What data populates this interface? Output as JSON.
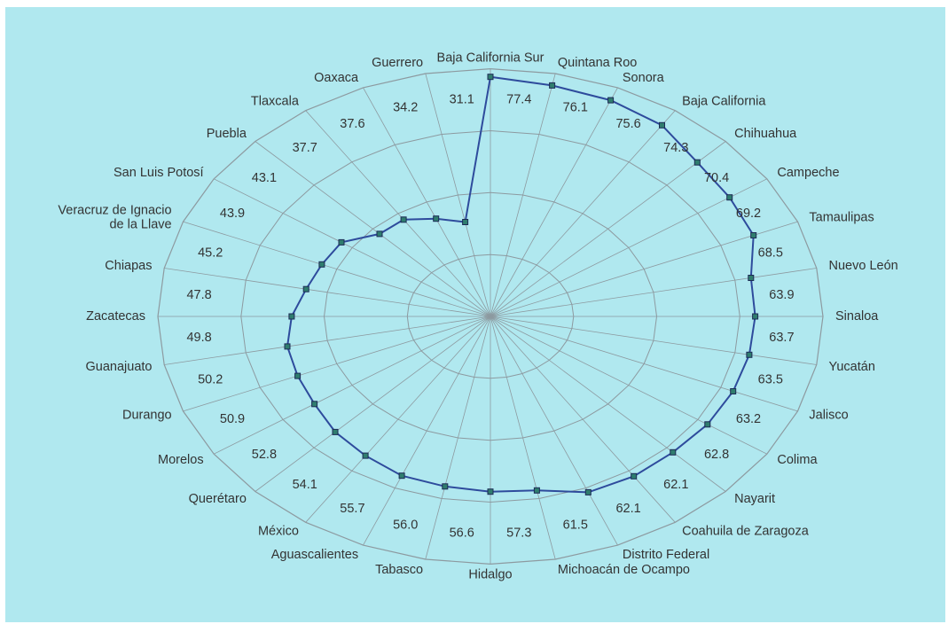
{
  "chart_data": {
    "type": "radar",
    "title": "",
    "rmax": 80,
    "ring_step": 20,
    "grid": true,
    "colors": {
      "background": "#b0e8ef",
      "grid": "#8d9aa0",
      "series_line": "#2e4b9c",
      "marker_fill": "#2f7d6e",
      "marker_stroke": "#1c2b55",
      "text": "#333333"
    },
    "categories": [
      "Baja California Sur",
      "Quintana Roo",
      "Sonora",
      "Baja California",
      "Chihuahua",
      "Campeche",
      "Tamaulipas",
      "Nuevo León",
      "Sinaloa",
      "Yucatán",
      "Jalisco",
      "Colima",
      "Nayarit",
      "Coahuila de Zaragoza",
      "Distrito Federal",
      "Michoacán de Ocampo",
      "Hidalgo",
      "Tabasco",
      "Aguascalientes",
      "México",
      "Querétaro",
      "Morelos",
      "Durango",
      "Guanajuato",
      "Zacatecas",
      "Chiapas",
      "Veracruz de Ignacio de la Llave",
      "San Luis Potosí",
      "Puebla",
      "Tlaxcala",
      "Oaxaca",
      "Guerrero"
    ],
    "category_lines": {
      "Veracruz de Ignacio de la Llave": [
        "Veracruz de Ignacio",
        "de la Llave"
      ]
    },
    "values": [
      77.4,
      76.1,
      75.6,
      74.3,
      70.4,
      69.2,
      68.5,
      63.9,
      63.7,
      63.5,
      63.2,
      62.8,
      62.1,
      62.1,
      61.5,
      57.3,
      56.6,
      56.0,
      55.7,
      54.1,
      52.8,
      50.9,
      50.2,
      49.8,
      47.8,
      45.2,
      43.9,
      43.1,
      37.7,
      37.6,
      34.2,
      31.1
    ],
    "value_labels": [
      "77.4",
      "76.1",
      "75.6",
      "74.3",
      "70.4",
      "69.2",
      "68.5",
      "63.9",
      "63.7",
      "63.5",
      "63.2",
      "62.8",
      "62.1",
      "62.1",
      "61.5",
      "57.3",
      "56.6",
      "56.0",
      "55.7",
      "54.1",
      "52.8",
      "50.9",
      "50.2",
      "49.8",
      "47.8",
      "45.2",
      "43.9",
      "43.1",
      "37.7",
      "37.6",
      "34.2",
      "31.1"
    ]
  }
}
